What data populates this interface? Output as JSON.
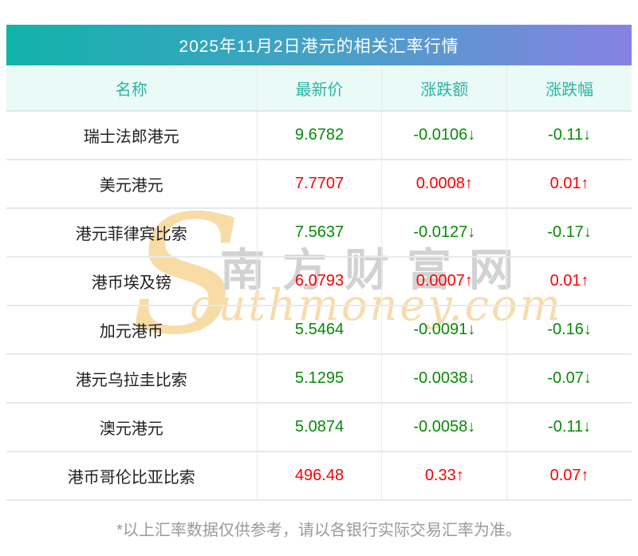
{
  "title": "2025年11月2日港元的相关汇率行情",
  "table": {
    "headers": [
      "名称",
      "最新价",
      "涨跌额",
      "涨跌幅"
    ],
    "rows": [
      {
        "name": "瑞士法郎港元",
        "latest": "9.6782",
        "change": "-0.0106",
        "change_pct": "-0.11",
        "trend": "down",
        "arrow": "↓"
      },
      {
        "name": "美元港元",
        "latest": "7.7707",
        "change": "0.0008",
        "change_pct": "0.01",
        "trend": "up",
        "arrow": "↑"
      },
      {
        "name": "港元菲律宾比索",
        "latest": "7.5637",
        "change": "-0.0127",
        "change_pct": "-0.17",
        "trend": "down",
        "arrow": "↓"
      },
      {
        "name": "港币埃及镑",
        "latest": "6.0793",
        "change": "0.0007",
        "change_pct": "0.01",
        "trend": "up",
        "arrow": "↑"
      },
      {
        "name": "加元港币",
        "latest": "5.5464",
        "change": "-0.0091",
        "change_pct": "-0.16",
        "trend": "down",
        "arrow": "↓"
      },
      {
        "name": "港元乌拉圭比索",
        "latest": "5.1295",
        "change": "-0.0038",
        "change_pct": "-0.07",
        "trend": "down",
        "arrow": "↓"
      },
      {
        "name": "澳元港元",
        "latest": "5.0874",
        "change": "-0.0058",
        "change_pct": "-0.11",
        "trend": "down",
        "arrow": "↓"
      },
      {
        "name": "港币哥伦比亚比索",
        "latest": "496.48",
        "change": "0.33",
        "change_pct": "0.07",
        "trend": "up",
        "arrow": "↑"
      }
    ]
  },
  "chart_data": {
    "type": "table",
    "title": "2025年11月2日港元的相关汇率行情",
    "columns": [
      "名称",
      "最新价",
      "涨跌额",
      "涨跌幅"
    ],
    "rows": [
      [
        "瑞士法郎港元",
        "9.6782",
        "-0.0106↓",
        "-0.11↓"
      ],
      [
        "美元港元",
        "7.7707",
        "0.0008↑",
        "0.01↑"
      ],
      [
        "港元菲律宾比索",
        "7.5637",
        "-0.0127↓",
        "-0.17↓"
      ],
      [
        "港币埃及镑",
        "6.0793",
        "0.0007↑",
        "0.01↑"
      ],
      [
        "加元港币",
        "5.5464",
        "-0.0091↓",
        "-0.16↓"
      ],
      [
        "港元乌拉圭比索",
        "5.1295",
        "-0.0038↓",
        "-0.07↓"
      ],
      [
        "澳元港元",
        "5.0874",
        "-0.0058↓",
        "-0.11↓"
      ],
      [
        "港币哥伦比亚比索",
        "496.48",
        "0.33↑",
        "0.07↑"
      ]
    ],
    "legend": "green = 下跌 (down), red = 上涨 (up)"
  },
  "watermark": {
    "initial": "S",
    "cn": "南方财富网",
    "en": "outhmoney.com"
  },
  "footer": {
    "note": "*以上汇率数据仅供参考，请以各银行实际交易汇率为准。"
  },
  "colors": {
    "up": "#fe0000",
    "down": "#068b06",
    "title_gradient_left": "#11b3ab",
    "title_gradient_right": "#8781e3",
    "header_bg": "#eafaf7",
    "header_text": "#2cb5a4"
  }
}
